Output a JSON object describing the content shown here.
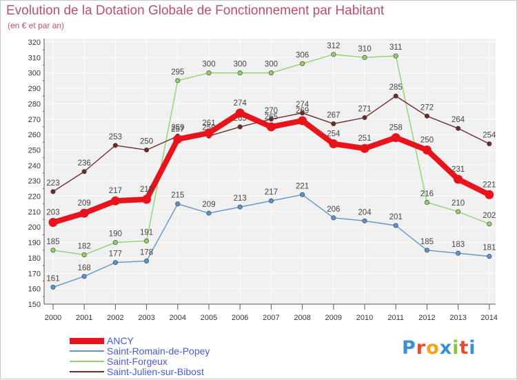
{
  "title": "Evolution de la Dotation Globale de Fonctionnement par Habitant",
  "subtitle": "(en € et par an)",
  "brand": {
    "letters": [
      "P",
      "r",
      "o",
      "x",
      "i",
      "t",
      "i"
    ],
    "colors": [
      "#3a8fd6",
      "#e84c2c",
      "#f2a31c",
      "#3a8fd6",
      "#8bc53f",
      "#e84c2c",
      "#3a8fd6"
    ]
  },
  "chart_data": {
    "type": "line",
    "title": "Evolution de la Dotation Globale de Fonctionnement par Habitant",
    "subtitle": "(en € et par an)",
    "xlabel": "",
    "ylabel": "",
    "x": [
      "2000",
      "2001",
      "2002",
      "2003",
      "2004",
      "2005",
      "2006",
      "2007",
      "2008",
      "2009",
      "2010",
      "2011",
      "2012",
      "2013",
      "2014"
    ],
    "ylim": [
      150,
      320
    ],
    "yticks": [
      150,
      160,
      170,
      180,
      190,
      200,
      210,
      220,
      230,
      240,
      250,
      260,
      270,
      280,
      290,
      300,
      310,
      320
    ],
    "grid": true,
    "legend": "bottom-left",
    "series": [
      {
        "name": "Saint-Romain-de-Popey",
        "color": "#5b94cc",
        "values": [
          161,
          168,
          177,
          178,
          215,
          209,
          213,
          217,
          221,
          206,
          204,
          201,
          185,
          183,
          181
        ]
      },
      {
        "name": "Saint-Forgeux",
        "color": "#8fd36a",
        "values": [
          185,
          182,
          190,
          191,
          295,
          300,
          300,
          300,
          306,
          312,
          310,
          311,
          216,
          210,
          202
        ]
      },
      {
        "name": "Saint-Julien-sur-Bibost",
        "color": "#6e2a2a",
        "values": [
          223,
          236,
          253,
          250,
          259,
          259,
          265,
          270,
          274,
          267,
          271,
          285,
          272,
          264,
          254
        ]
      },
      {
        "name": "ANCY",
        "color": "#e8141c",
        "values": [
          203,
          209,
          217,
          218,
          257,
          261,
          274,
          265,
          269,
          254,
          251,
          258,
          250,
          231,
          221
        ]
      }
    ]
  }
}
